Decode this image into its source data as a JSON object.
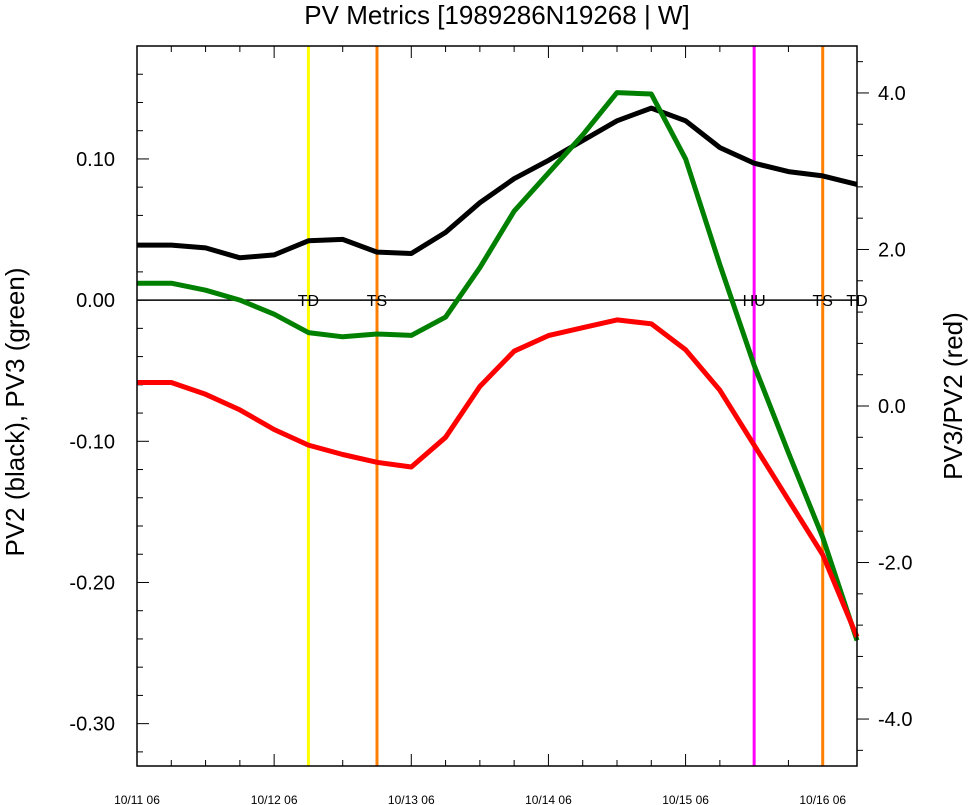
{
  "chart_data": {
    "type": "line",
    "title": "PV Metrics [1989286N19268 | W]",
    "ylabel_left": "PV2 (black), PV3 (green)",
    "ylabel_right": "PV3/PV2 (red)",
    "xlabel": "",
    "x_ticks": [
      "10/11 06",
      "10/12 06",
      "10/13 06",
      "10/14 06",
      "10/15 06",
      "10/16 06"
    ],
    "x_range_hours": [
      0,
      126
    ],
    "y_left_range": [
      -0.33,
      0.18
    ],
    "y_left_ticks": [
      {
        "value": 0.1,
        "label": "0.10"
      },
      {
        "value": 0.0,
        "label": "0.00"
      },
      {
        "value": -0.1,
        "label": "-0.10"
      },
      {
        "value": -0.2,
        "label": "-0.20"
      },
      {
        "value": -0.3,
        "label": "-0.30"
      }
    ],
    "y_right_range": [
      -4.6,
      4.6
    ],
    "y_right_ticks": [
      {
        "value": 4.0,
        "label": "4.0"
      },
      {
        "value": 2.0,
        "label": "2.0"
      },
      {
        "value": 0.0,
        "label": "0.0"
      },
      {
        "value": -2.0,
        "label": "-2.0"
      },
      {
        "value": -4.0,
        "label": "-4.0"
      }
    ],
    "x_hours": [
      0,
      6,
      12,
      18,
      24,
      30,
      36,
      42,
      48,
      54,
      60,
      66,
      72,
      78,
      84,
      90,
      96,
      102,
      108,
      114,
      120,
      126
    ],
    "series": [
      {
        "color": "#000000",
        "axis": "left",
        "values": [
          0.039,
          0.039,
          0.037,
          0.03,
          0.032,
          0.042,
          0.043,
          0.034,
          0.033,
          0.048,
          0.069,
          0.086,
          0.099,
          0.113,
          0.127,
          0.136,
          0.127,
          0.108,
          0.097,
          0.091,
          0.088,
          0.082
        ]
      },
      {
        "color": "#008000",
        "axis": "left",
        "values": [
          0.012,
          0.012,
          0.007,
          0.0,
          -0.01,
          -0.023,
          -0.026,
          -0.024,
          -0.025,
          -0.012,
          0.023,
          0.063,
          0.09,
          0.117,
          0.147,
          0.146,
          0.1,
          0.025,
          -0.046,
          -0.108,
          -0.168,
          -0.241
        ]
      },
      {
        "color": "#ff0000",
        "axis": "right",
        "values": [
          0.3,
          0.3,
          0.15,
          -0.05,
          -0.3,
          -0.5,
          -0.62,
          -0.72,
          -0.78,
          -0.4,
          0.25,
          0.7,
          0.9,
          1.0,
          1.1,
          1.05,
          0.72,
          0.2,
          -0.5,
          -1.2,
          -1.9,
          -2.95
        ]
      }
    ],
    "zero_line": {
      "axis": "left",
      "value": 0.0
    },
    "stage_markers": [
      {
        "label": "TD",
        "hour": 30,
        "color": "#ffff00"
      },
      {
        "label": "TS",
        "hour": 42,
        "color": "#ff8000"
      },
      {
        "label": "HU",
        "hour": 108,
        "color": "#ff00ff"
      },
      {
        "label": "TS",
        "hour": 120,
        "color": "#ff8000"
      },
      {
        "label": "TD",
        "hour": 126,
        "color": null
      }
    ]
  }
}
